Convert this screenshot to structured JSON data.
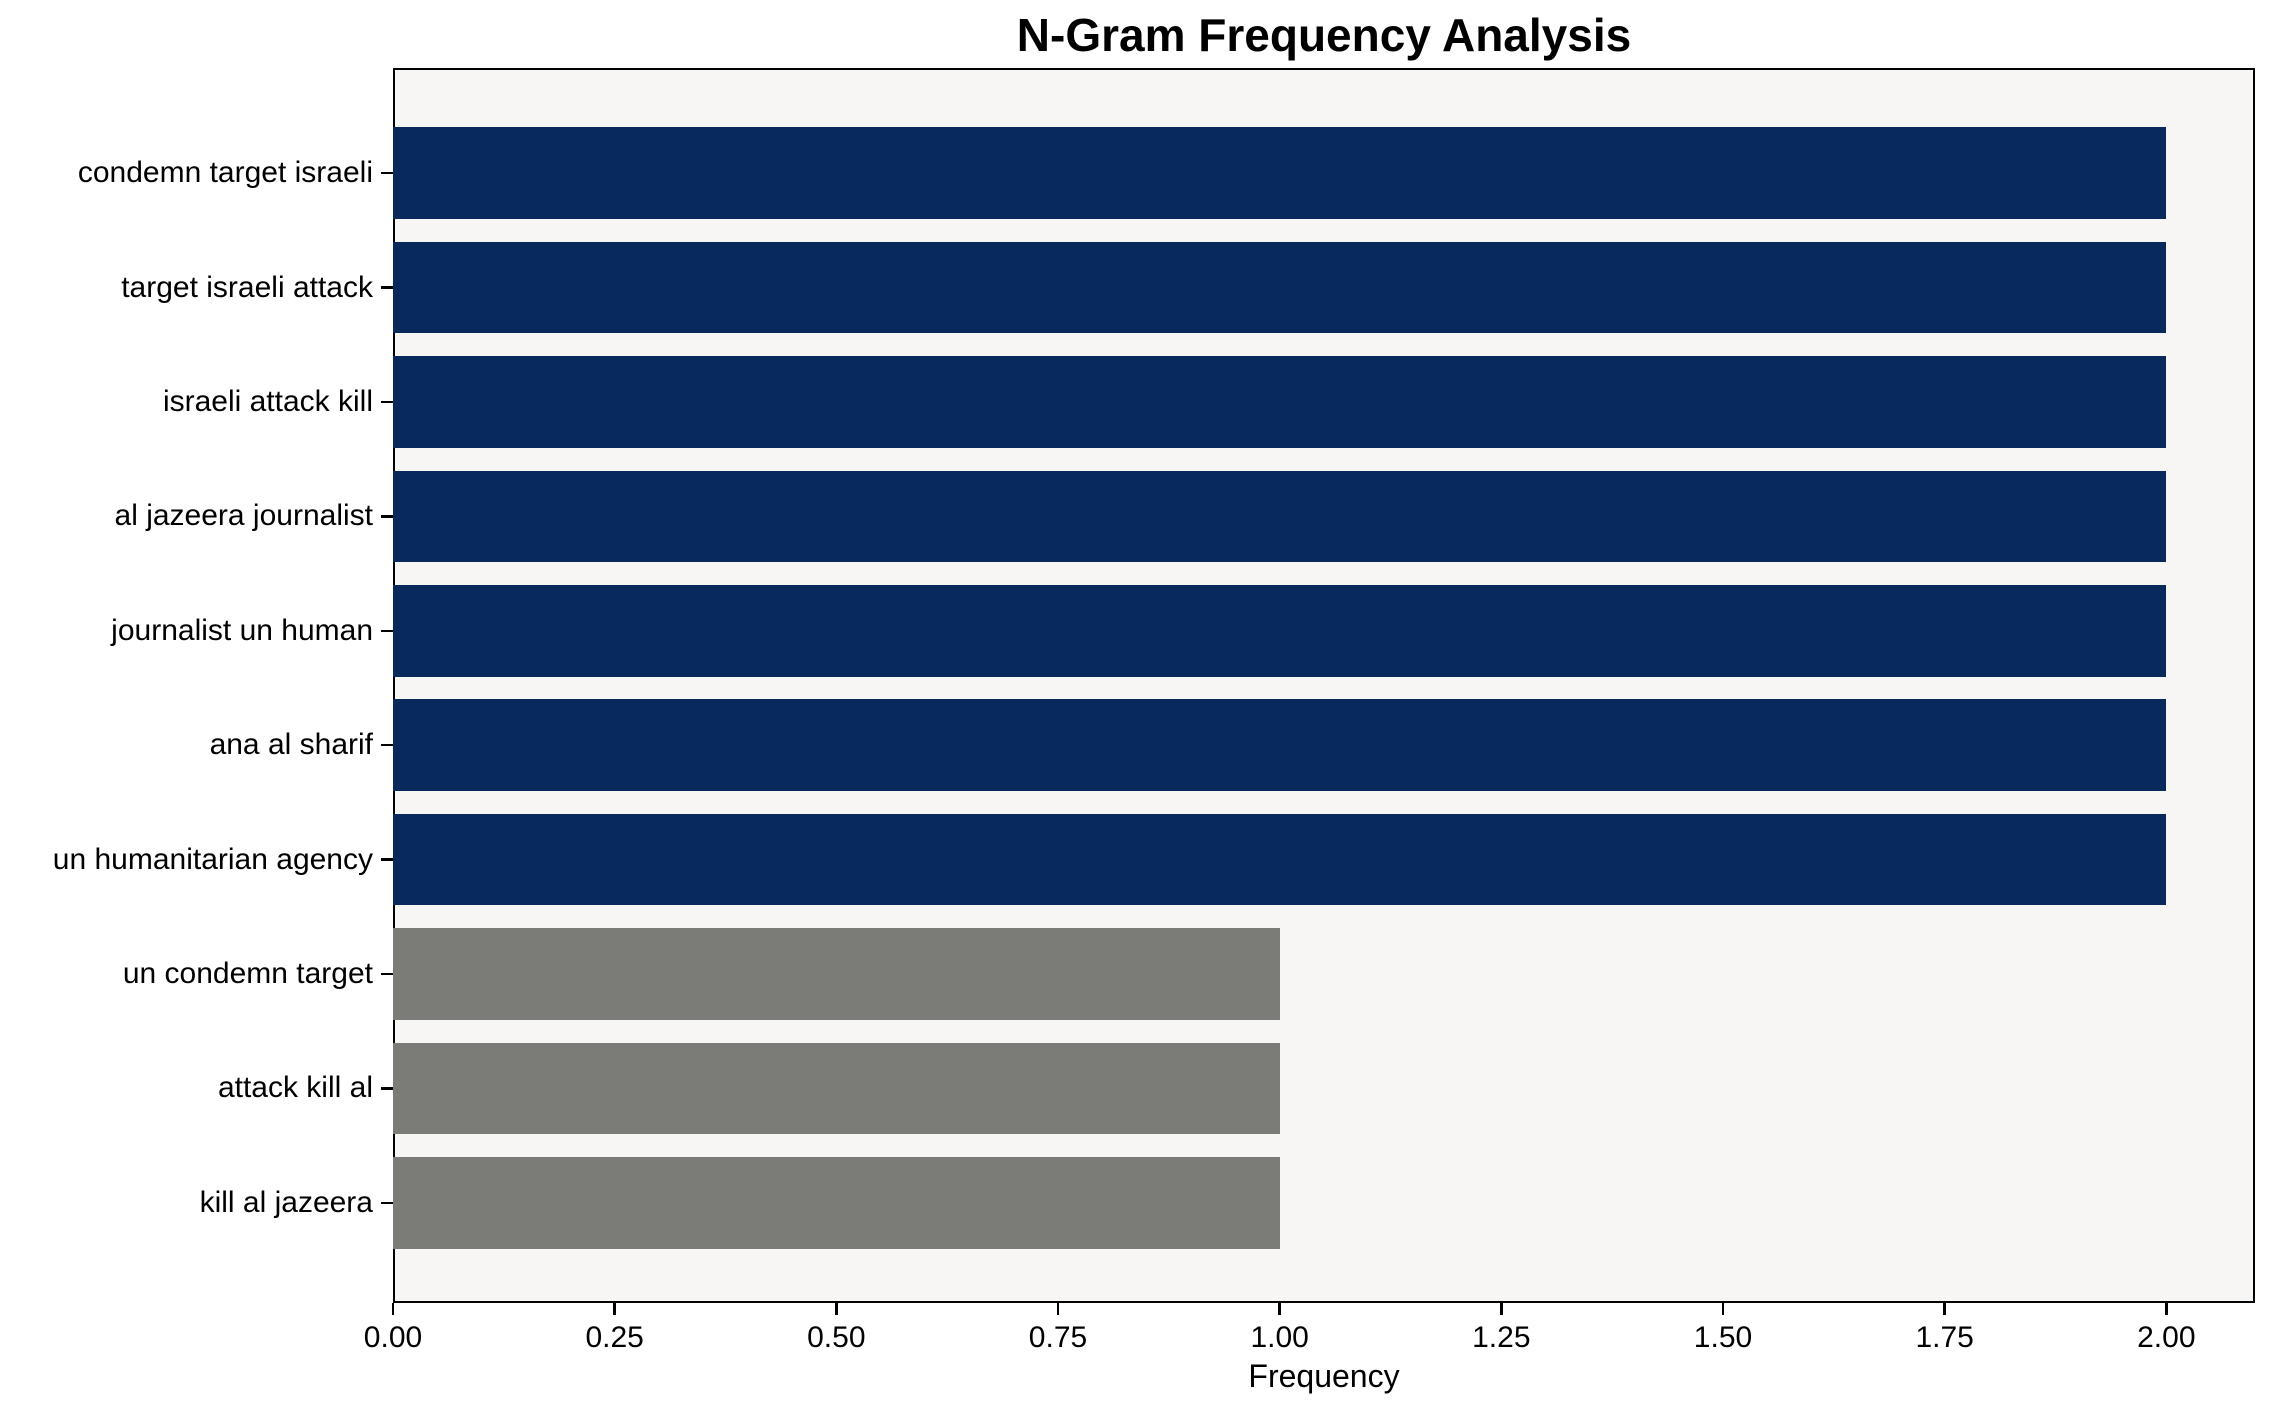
{
  "chart_data": {
    "type": "bar",
    "orientation": "horizontal",
    "title": "N-Gram Frequency Analysis",
    "xlabel": "Frequency",
    "ylabel": "",
    "categories": [
      "condemn target israeli",
      "target israeli attack",
      "israeli attack kill",
      "al jazeera journalist",
      "journalist un human",
      "ana al sharif",
      "un humanitarian agency",
      "un condemn target",
      "attack kill al",
      "kill al jazeera"
    ],
    "values": [
      2,
      2,
      2,
      2,
      2,
      2,
      2,
      1,
      1,
      1
    ],
    "bar_colors": [
      "#07295c",
      "#07295c",
      "#07295c",
      "#07295c",
      "#07295c",
      "#07295c",
      "#07295c",
      "#7b7b78",
      "#7b7b78",
      "#7b7b78"
    ],
    "xlim": [
      0,
      2.1
    ],
    "xticks": [
      0.0,
      0.25,
      0.5,
      0.75,
      1.0,
      1.25,
      1.5,
      1.75,
      2.0
    ],
    "xtick_labels": [
      "0.00",
      "0.25",
      "0.50",
      "0.75",
      "1.00",
      "1.25",
      "1.50",
      "1.75",
      "2.00"
    ],
    "grid": false,
    "legend": "none",
    "colors": {
      "highlight": "#07295c",
      "muted": "#7b7b78",
      "plot_bg": "#f7f6f5",
      "figure_bg": "#ffffff",
      "spine": "#000000",
      "text": "#000000"
    }
  }
}
